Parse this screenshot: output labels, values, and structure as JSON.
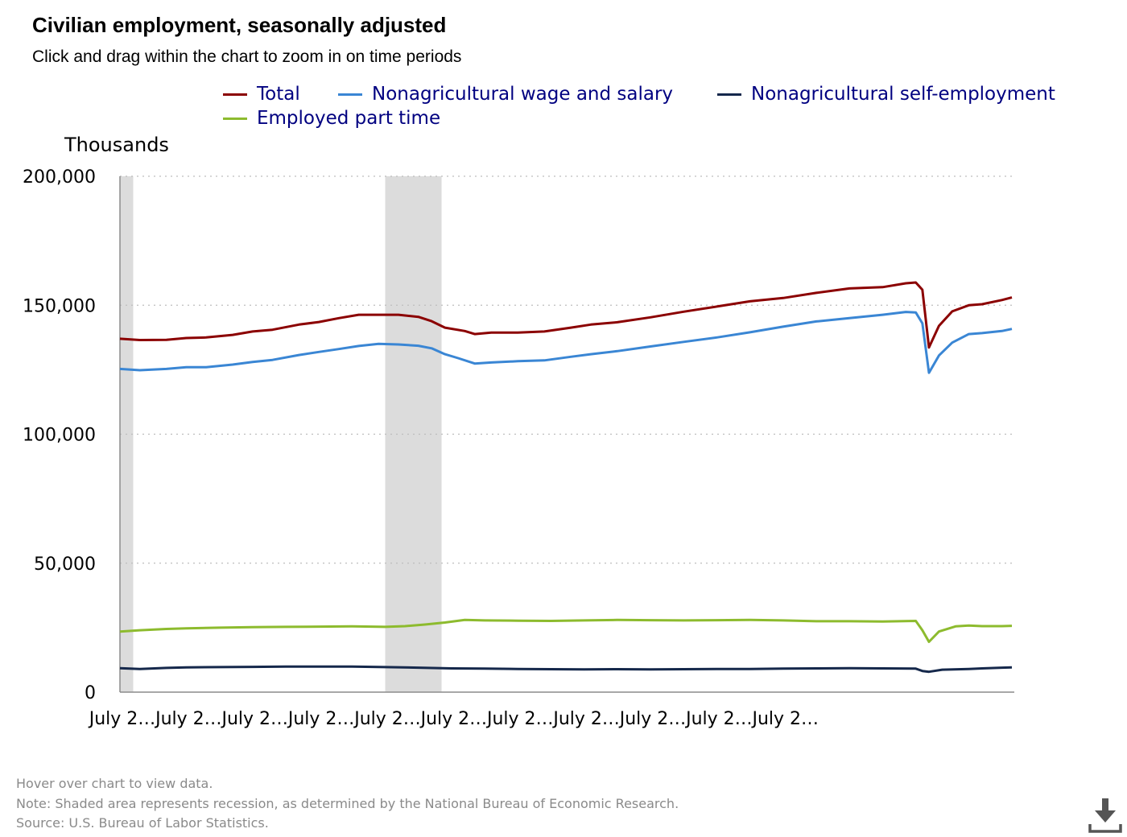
{
  "title": "Civilian employment, seasonally adjusted",
  "subtitle": "Click and drag within the chart to zoom in on time periods",
  "footnotes": {
    "hover": "Hover over chart to view data.",
    "note": "Note: Shaded area represents recession, as determined by the National Bureau of Economic Research.",
    "source": "Source: U.S. Bureau of Labor Statistics."
  },
  "download_icon": "download-icon",
  "chart_data": {
    "type": "line",
    "ylabel": "Thousands",
    "ylim": [
      0,
      200000
    ],
    "yticks": [
      "200,000",
      "150,000",
      "100,000",
      "50,000",
      "0"
    ],
    "ytick_values": [
      200000,
      150000,
      100000,
      50000,
      0
    ],
    "xtick_labels": [
      "July 2…",
      "July 2…",
      "July 2…",
      "July 2…",
      "July 2…",
      "July 2…",
      "July 2…",
      "July 2…",
      "July 2…",
      "July 2…",
      "July 2…"
    ],
    "grid": true,
    "legend_placement": "top",
    "recession_shading": [
      [
        0.0,
        0.2
      ],
      [
        4.0,
        4.85
      ]
    ],
    "series": [
      {
        "name": "Total",
        "color": "#8b0000",
        "points": [
          [
            0,
            137000
          ],
          [
            0.3,
            136500
          ],
          [
            0.7,
            136600
          ],
          [
            1.0,
            137300
          ],
          [
            1.3,
            137500
          ],
          [
            1.7,
            138500
          ],
          [
            2.0,
            139800
          ],
          [
            2.3,
            140500
          ],
          [
            2.7,
            142500
          ],
          [
            3.0,
            143500
          ],
          [
            3.3,
            145000
          ],
          [
            3.6,
            146300
          ],
          [
            3.9,
            146300
          ],
          [
            4.2,
            146300
          ],
          [
            4.5,
            145500
          ],
          [
            4.7,
            143800
          ],
          [
            4.9,
            141300
          ],
          [
            5.2,
            140000
          ],
          [
            5.35,
            138800
          ],
          [
            5.6,
            139400
          ],
          [
            6.0,
            139400
          ],
          [
            6.4,
            139800
          ],
          [
            6.8,
            141300
          ],
          [
            7.1,
            142500
          ],
          [
            7.5,
            143400
          ],
          [
            8.0,
            145300
          ],
          [
            8.5,
            147500
          ],
          [
            9.0,
            149500
          ],
          [
            9.5,
            151500
          ],
          [
            10.0,
            152800
          ],
          [
            10.5,
            154800
          ],
          [
            11.0,
            156500
          ],
          [
            11.5,
            157000
          ],
          [
            11.85,
            158500
          ],
          [
            12.0,
            158800
          ],
          [
            12.1,
            156000
          ],
          [
            12.2,
            133600
          ],
          [
            12.35,
            142000
          ],
          [
            12.55,
            147600
          ],
          [
            12.8,
            150000
          ],
          [
            13.0,
            150400
          ],
          [
            13.3,
            152000
          ],
          [
            13.45,
            153000
          ]
        ]
      },
      {
        "name": "Nonagricultural wage and salary",
        "color": "#3a86d4",
        "points": [
          [
            0,
            125300
          ],
          [
            0.3,
            124800
          ],
          [
            0.7,
            125300
          ],
          [
            1.0,
            126000
          ],
          [
            1.3,
            126000
          ],
          [
            1.7,
            127000
          ],
          [
            2.0,
            128000
          ],
          [
            2.3,
            128800
          ],
          [
            2.7,
            130700
          ],
          [
            3.0,
            131900
          ],
          [
            3.3,
            133000
          ],
          [
            3.6,
            134200
          ],
          [
            3.9,
            135000
          ],
          [
            4.2,
            134800
          ],
          [
            4.5,
            134300
          ],
          [
            4.7,
            133300
          ],
          [
            4.9,
            131000
          ],
          [
            5.1,
            129500
          ],
          [
            5.35,
            127400
          ],
          [
            5.6,
            127800
          ],
          [
            6.0,
            128300
          ],
          [
            6.4,
            128600
          ],
          [
            6.8,
            130000
          ],
          [
            7.1,
            131000
          ],
          [
            7.5,
            132200
          ],
          [
            8.0,
            134000
          ],
          [
            8.5,
            135800
          ],
          [
            9.0,
            137500
          ],
          [
            9.5,
            139500
          ],
          [
            10.0,
            141700
          ],
          [
            10.5,
            143700
          ],
          [
            11.0,
            145000
          ],
          [
            11.5,
            146300
          ],
          [
            11.85,
            147400
          ],
          [
            12.0,
            147200
          ],
          [
            12.1,
            143000
          ],
          [
            12.2,
            123800
          ],
          [
            12.35,
            130500
          ],
          [
            12.55,
            135500
          ],
          [
            12.8,
            138800
          ],
          [
            13.0,
            139200
          ],
          [
            13.3,
            140000
          ],
          [
            13.45,
            140800
          ]
        ]
      },
      {
        "name": "Nonagricultural self-employment",
        "color": "#15284b",
        "points": [
          [
            0,
            9300
          ],
          [
            0.3,
            9000
          ],
          [
            0.7,
            9400
          ],
          [
            1.0,
            9600
          ],
          [
            1.5,
            9700
          ],
          [
            2.0,
            9800
          ],
          [
            2.5,
            9900
          ],
          [
            3.0,
            9900
          ],
          [
            3.5,
            9900
          ],
          [
            4.0,
            9700
          ],
          [
            4.5,
            9500
          ],
          [
            5.0,
            9200
          ],
          [
            5.5,
            9100
          ],
          [
            6.0,
            9000
          ],
          [
            6.5,
            8900
          ],
          [
            7.0,
            8800
          ],
          [
            7.5,
            8900
          ],
          [
            8.0,
            8800
          ],
          [
            8.5,
            8900
          ],
          [
            9.0,
            9000
          ],
          [
            9.5,
            9000
          ],
          [
            10.0,
            9100
          ],
          [
            10.5,
            9200
          ],
          [
            11.0,
            9300
          ],
          [
            11.5,
            9200
          ],
          [
            12.0,
            9100
          ],
          [
            12.1,
            8200
          ],
          [
            12.2,
            7900
          ],
          [
            12.4,
            8700
          ],
          [
            12.8,
            9000
          ],
          [
            13.0,
            9200
          ],
          [
            13.3,
            9500
          ],
          [
            13.45,
            9600
          ]
        ]
      },
      {
        "name": "Employed part time",
        "color": "#8dbb2e",
        "points": [
          [
            0,
            23500
          ],
          [
            0.3,
            24000
          ],
          [
            0.7,
            24500
          ],
          [
            1.0,
            24700
          ],
          [
            1.5,
            25000
          ],
          [
            2.0,
            25200
          ],
          [
            2.5,
            25300
          ],
          [
            3.0,
            25400
          ],
          [
            3.5,
            25500
          ],
          [
            4.0,
            25300
          ],
          [
            4.3,
            25600
          ],
          [
            4.6,
            26200
          ],
          [
            4.9,
            27000
          ],
          [
            5.2,
            28000
          ],
          [
            5.5,
            27800
          ],
          [
            6.0,
            27700
          ],
          [
            6.5,
            27600
          ],
          [
            7.0,
            27800
          ],
          [
            7.5,
            28000
          ],
          [
            8.0,
            27900
          ],
          [
            8.5,
            27800
          ],
          [
            9.0,
            27900
          ],
          [
            9.5,
            28000
          ],
          [
            10.0,
            27800
          ],
          [
            10.5,
            27500
          ],
          [
            11.0,
            27500
          ],
          [
            11.5,
            27400
          ],
          [
            12.0,
            27600
          ],
          [
            12.1,
            24000
          ],
          [
            12.2,
            19500
          ],
          [
            12.35,
            23500
          ],
          [
            12.6,
            25500
          ],
          [
            12.8,
            25800
          ],
          [
            13.0,
            25600
          ],
          [
            13.3,
            25600
          ],
          [
            13.45,
            25700
          ]
        ]
      }
    ]
  }
}
